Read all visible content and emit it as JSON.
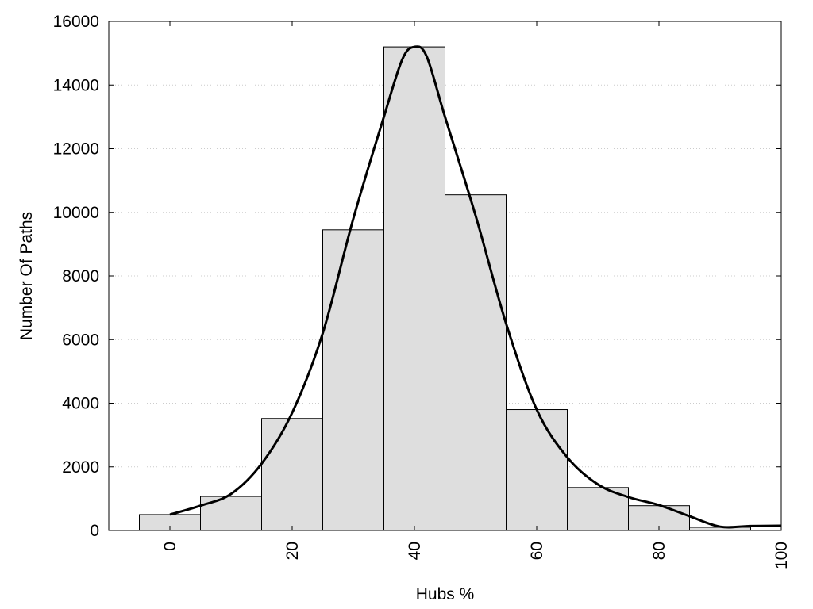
{
  "chart_data": {
    "type": "bar",
    "title": "",
    "xlabel": "Hubs %",
    "ylabel": "Number Of Paths",
    "xlim": [
      -10,
      100
    ],
    "ylim": [
      0,
      16000
    ],
    "grid": "horizontal dotted",
    "bin_width": 10,
    "x_ticks": [
      "0",
      "20",
      "40",
      "60",
      "80",
      "100"
    ],
    "y_ticks": [
      "0",
      "2000",
      "4000",
      "6000",
      "8000",
      "10000",
      "12000",
      "14000",
      "16000"
    ],
    "bars": [
      {
        "x": 0,
        "value": 500
      },
      {
        "x": 10,
        "value": 1070
      },
      {
        "x": 20,
        "value": 3520
      },
      {
        "x": 30,
        "value": 9450
      },
      {
        "x": 40,
        "value": 15200
      },
      {
        "x": 50,
        "value": 10550
      },
      {
        "x": 60,
        "value": 3800
      },
      {
        "x": 70,
        "value": 1350
      },
      {
        "x": 80,
        "value": 780
      },
      {
        "x": 90,
        "value": 100
      }
    ],
    "curve": {
      "x": [
        0,
        5,
        10,
        15,
        20,
        25,
        30,
        35,
        38,
        40,
        42,
        45,
        50,
        55,
        60,
        65,
        70,
        75,
        80,
        85,
        90,
        95,
        100
      ],
      "y": [
        500,
        780,
        1150,
        2100,
        3700,
        6200,
        9800,
        13000,
        14800,
        15200,
        14900,
        13000,
        9900,
        6500,
        3800,
        2300,
        1450,
        1050,
        800,
        450,
        120,
        140,
        150
      ]
    },
    "colors": {
      "bar_fill": "#dedede",
      "bar_stroke": "#000000",
      "curve": "#000000",
      "grid": "#cccccc"
    }
  }
}
